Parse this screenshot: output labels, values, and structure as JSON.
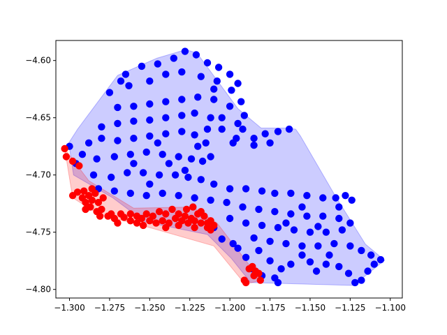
{
  "chart_data": {
    "type": "scatter",
    "title": "",
    "xlabel": "",
    "ylabel": "",
    "xlim": [
      -1.3085,
      -1.0925
    ],
    "ylim": [
      -4.8075,
      -4.5825
    ],
    "x_ticks": [
      -1.3,
      -1.275,
      -1.25,
      -1.225,
      -1.2,
      -1.175,
      -1.15,
      -1.125,
      -1.1
    ],
    "x_tick_labels": [
      "−1.300",
      "−1.275",
      "−1.250",
      "−1.225",
      "−1.200",
      "−1.175",
      "−1.150",
      "−1.125",
      "−1.100"
    ],
    "y_ticks": [
      -4.8,
      -4.75,
      -4.7,
      -4.65,
      -4.6
    ],
    "y_tick_labels": [
      "−4.80",
      "−4.75",
      "−4.70",
      "−4.65",
      "−4.60"
    ],
    "grid": false,
    "legend": false,
    "series": [
      {
        "color": "#0000ff",
        "hull": [
          [
            -1.2275,
            -4.5905
          ],
          [
            -1.2205,
            -4.5935
          ],
          [
            -1.195,
            -4.642
          ],
          [
            -1.1805,
            -4.659
          ],
          [
            -1.164,
            -4.659
          ],
          [
            -1.159,
            -4.66
          ],
          [
            -1.156,
            -4.666
          ],
          [
            -1.134,
            -4.719
          ],
          [
            -1.1155,
            -4.7605
          ],
          [
            -1.1035,
            -4.7745
          ],
          [
            -1.123,
            -4.7965
          ],
          [
            -1.187,
            -4.794
          ],
          [
            -1.199,
            -4.773
          ],
          [
            -1.214,
            -4.752
          ],
          [
            -1.253,
            -4.741
          ],
          [
            -1.273,
            -4.72
          ],
          [
            -1.2975,
            -4.7
          ],
          [
            -1.3005,
            -4.672
          ],
          [
            -1.295,
            -4.66
          ],
          [
            -1.27,
            -4.613
          ],
          [
            -1.2455,
            -4.598
          ]
        ],
        "points": [
          [
            -1.265,
            -4.612
          ],
          [
            -1.255,
            -4.605
          ],
          [
            -1.245,
            -4.603
          ],
          [
            -1.235,
            -4.598
          ],
          [
            -1.228,
            -4.592
          ],
          [
            -1.221,
            -4.595
          ],
          [
            -1.214,
            -4.602
          ],
          [
            -1.207,
            -4.606
          ],
          [
            -1.2,
            -4.612
          ],
          [
            -1.195,
            -4.62
          ],
          [
            -1.263,
            -4.622
          ],
          [
            -1.25,
            -4.618
          ],
          [
            -1.24,
            -4.612
          ],
          [
            -1.23,
            -4.61
          ],
          [
            -1.218,
            -4.614
          ],
          [
            -1.208,
            -4.618
          ],
          [
            -1.199,
            -4.626
          ],
          [
            -1.193,
            -4.636
          ],
          [
            -1.191,
            -4.648
          ],
          [
            -1.192,
            -4.66
          ],
          [
            -1.27,
            -4.641
          ],
          [
            -1.26,
            -4.64
          ],
          [
            -1.25,
            -4.638
          ],
          [
            -1.24,
            -4.636
          ],
          [
            -1.23,
            -4.634
          ],
          [
            -1.22,
            -4.632
          ],
          [
            -1.21,
            -4.634
          ],
          [
            -1.2,
            -4.64
          ],
          [
            -1.195,
            -4.655
          ],
          [
            -1.196,
            -4.668
          ],
          [
            -1.28,
            -4.658
          ],
          [
            -1.27,
            -4.655
          ],
          [
            -1.26,
            -4.653
          ],
          [
            -1.25,
            -4.652
          ],
          [
            -1.24,
            -4.65
          ],
          [
            -1.23,
            -4.648
          ],
          [
            -1.222,
            -4.646
          ],
          [
            -1.212,
            -4.65
          ],
          [
            -1.205,
            -4.66
          ],
          [
            -1.198,
            -4.672
          ],
          [
            -1.288,
            -4.672
          ],
          [
            -1.28,
            -4.668
          ],
          [
            -1.27,
            -4.67
          ],
          [
            -1.26,
            -4.668
          ],
          [
            -1.25,
            -4.666
          ],
          [
            -1.24,
            -4.664
          ],
          [
            -1.23,
            -4.662
          ],
          [
            -1.222,
            -4.665
          ],
          [
            -1.215,
            -4.672
          ],
          [
            -1.185,
            -4.668
          ],
          [
            -1.178,
            -4.664
          ],
          [
            -1.17,
            -4.662
          ],
          [
            -1.163,
            -4.66
          ],
          [
            -1.175,
            -4.672
          ],
          [
            -1.185,
            -4.674
          ],
          [
            -1.292,
            -4.682
          ],
          [
            -1.283,
            -4.686
          ],
          [
            -1.272,
            -4.684
          ],
          [
            -1.262,
            -4.682
          ],
          [
            -1.252,
            -4.68
          ],
          [
            -1.242,
            -4.682
          ],
          [
            -1.232,
            -4.684
          ],
          [
            -1.224,
            -4.686
          ],
          [
            -1.217,
            -4.688
          ],
          [
            -1.212,
            -4.684
          ],
          [
            -1.285,
            -4.7
          ],
          [
            -1.274,
            -4.702
          ],
          [
            -1.264,
            -4.698
          ],
          [
            -1.254,
            -4.698
          ],
          [
            -1.244,
            -4.7
          ],
          [
            -1.234,
            -4.7
          ],
          [
            -1.226,
            -4.702
          ],
          [
            -1.218,
            -4.704
          ],
          [
            -1.21,
            -4.708
          ],
          [
            -1.2,
            -4.712
          ],
          [
            -1.19,
            -4.712
          ],
          [
            -1.18,
            -4.714
          ],
          [
            -1.172,
            -4.716
          ],
          [
            -1.162,
            -4.716
          ],
          [
            -1.152,
            -4.718
          ],
          [
            -1.142,
            -4.72
          ],
          [
            -1.134,
            -4.72
          ],
          [
            -1.128,
            -4.718
          ],
          [
            -1.124,
            -4.722
          ],
          [
            -1.132,
            -4.728
          ],
          [
            -1.282,
            -4.712
          ],
          [
            -1.272,
            -4.714
          ],
          [
            -1.262,
            -4.716
          ],
          [
            -1.252,
            -4.718
          ],
          [
            -1.242,
            -4.716
          ],
          [
            -1.232,
            -4.718
          ],
          [
            -1.222,
            -4.72
          ],
          [
            -1.212,
            -4.722
          ],
          [
            -1.202,
            -4.724
          ],
          [
            -1.192,
            -4.728
          ],
          [
            -1.182,
            -4.73
          ],
          [
            -1.172,
            -4.732
          ],
          [
            -1.162,
            -4.734
          ],
          [
            -1.152,
            -4.736
          ],
          [
            -1.142,
            -4.736
          ],
          [
            -1.132,
            -4.738
          ],
          [
            -1.125,
            -4.742
          ],
          [
            -1.13,
            -4.748
          ],
          [
            -1.14,
            -4.75
          ],
          [
            -1.15,
            -4.75
          ],
          [
            -1.16,
            -4.748
          ],
          [
            -1.17,
            -4.746
          ],
          [
            -1.18,
            -4.744
          ],
          [
            -1.19,
            -4.742
          ],
          [
            -1.2,
            -4.738
          ],
          [
            -1.185,
            -4.755
          ],
          [
            -1.175,
            -4.758
          ],
          [
            -1.165,
            -4.76
          ],
          [
            -1.155,
            -4.762
          ],
          [
            -1.145,
            -4.762
          ],
          [
            -1.135,
            -4.76
          ],
          [
            -1.125,
            -4.762
          ],
          [
            -1.118,
            -4.766
          ],
          [
            -1.112,
            -4.77
          ],
          [
            -1.106,
            -4.774
          ],
          [
            -1.195,
            -4.764
          ],
          [
            -1.19,
            -4.772
          ],
          [
            -1.186,
            -4.782
          ],
          [
            -1.18,
            -4.788
          ],
          [
            -1.172,
            -4.79
          ],
          [
            -1.17,
            -4.794
          ],
          [
            -1.162,
            -4.778
          ],
          [
            -1.15,
            -4.776
          ],
          [
            -1.14,
            -4.778
          ],
          [
            -1.132,
            -4.78
          ],
          [
            -1.126,
            -4.786
          ],
          [
            -1.122,
            -4.794
          ],
          [
            -1.118,
            -4.792
          ],
          [
            -1.114,
            -4.784
          ],
          [
            -1.11,
            -4.778
          ],
          [
            -1.205,
            -4.756
          ],
          [
            -1.198,
            -4.76
          ],
          [
            -1.21,
            -4.746
          ],
          [
            -1.238,
            -4.69
          ],
          [
            -1.245,
            -4.672
          ],
          [
            -1.3,
            -4.675
          ],
          [
            -1.296,
            -4.69
          ],
          [
            -1.275,
            -4.628
          ],
          [
            -1.268,
            -4.618
          ],
          [
            -1.21,
            -4.625
          ],
          [
            -1.214,
            -4.66
          ],
          [
            -1.205,
            -4.65
          ],
          [
            -1.22,
            -4.675
          ],
          [
            -1.26,
            -4.69
          ],
          [
            -1.25,
            -4.708
          ],
          [
            -1.228,
            -4.696
          ],
          [
            -1.165,
            -4.742
          ],
          [
            -1.155,
            -4.728
          ],
          [
            -1.145,
            -4.745
          ],
          [
            -1.138,
            -4.77
          ],
          [
            -1.155,
            -4.77
          ],
          [
            -1.175,
            -4.775
          ],
          [
            -1.182,
            -4.766
          ],
          [
            -1.168,
            -4.782
          ],
          [
            -1.146,
            -4.784
          ]
        ]
      },
      {
        "color": "#ff0000",
        "hull": [
          [
            -1.303,
            -4.677
          ],
          [
            -1.288,
            -4.705
          ],
          [
            -1.26,
            -4.729
          ],
          [
            -1.223,
            -4.728
          ],
          [
            -1.208,
            -4.742
          ],
          [
            -1.1855,
            -4.783
          ],
          [
            -1.1805,
            -4.792
          ],
          [
            -1.1905,
            -4.7955
          ],
          [
            -1.21,
            -4.762
          ],
          [
            -1.26,
            -4.742
          ],
          [
            -1.281,
            -4.735
          ],
          [
            -1.298,
            -4.72
          ]
        ],
        "points": [
          [
            -1.303,
            -4.677
          ],
          [
            -1.302,
            -4.684
          ],
          [
            -1.298,
            -4.688
          ],
          [
            -1.294,
            -4.692
          ],
          [
            -1.298,
            -4.718
          ],
          [
            -1.295,
            -4.715
          ],
          [
            -1.292,
            -4.72
          ],
          [
            -1.29,
            -4.724
          ],
          [
            -1.288,
            -4.718
          ],
          [
            -1.286,
            -4.722
          ],
          [
            -1.284,
            -4.716
          ],
          [
            -1.282,
            -4.724
          ],
          [
            -1.28,
            -4.73
          ],
          [
            -1.279,
            -4.72
          ],
          [
            -1.287,
            -4.728
          ],
          [
            -1.29,
            -4.73
          ],
          [
            -1.283,
            -4.732
          ],
          [
            -1.281,
            -4.736
          ],
          [
            -1.286,
            -4.712
          ],
          [
            -1.291,
            -4.714
          ],
          [
            -1.276,
            -4.736
          ],
          [
            -1.266,
            -4.737
          ],
          [
            -1.262,
            -4.74
          ],
          [
            -1.258,
            -4.742
          ],
          [
            -1.255,
            -4.738
          ],
          [
            -1.252,
            -4.734
          ],
          [
            -1.248,
            -4.736
          ],
          [
            -1.244,
            -4.732
          ],
          [
            -1.24,
            -4.734
          ],
          [
            -1.236,
            -4.73
          ],
          [
            -1.232,
            -4.734
          ],
          [
            -1.228,
            -4.736
          ],
          [
            -1.224,
            -4.738
          ],
          [
            -1.22,
            -4.734
          ],
          [
            -1.216,
            -4.736
          ],
          [
            -1.212,
            -4.74
          ],
          [
            -1.21,
            -4.744
          ],
          [
            -1.214,
            -4.746
          ],
          [
            -1.218,
            -4.742
          ],
          [
            -1.222,
            -4.74
          ],
          [
            -1.226,
            -4.742
          ],
          [
            -1.23,
            -4.74
          ],
          [
            -1.234,
            -4.738
          ],
          [
            -1.238,
            -4.742
          ],
          [
            -1.242,
            -4.74
          ],
          [
            -1.246,
            -4.742
          ],
          [
            -1.25,
            -4.74
          ],
          [
            -1.254,
            -4.744
          ],
          [
            -1.258,
            -4.736
          ],
          [
            -1.262,
            -4.734
          ],
          [
            -1.268,
            -4.734
          ],
          [
            -1.272,
            -4.738
          ],
          [
            -1.274,
            -4.734
          ],
          [
            -1.27,
            -4.742
          ],
          [
            -1.227,
            -4.73
          ],
          [
            -1.223,
            -4.728
          ],
          [
            -1.218,
            -4.732
          ],
          [
            -1.214,
            -4.742
          ],
          [
            -1.212,
            -4.748
          ],
          [
            -1.222,
            -4.746
          ],
          [
            -1.232,
            -4.744
          ],
          [
            -1.24,
            -4.746
          ],
          [
            -1.186,
            -4.78
          ],
          [
            -1.184,
            -4.784
          ],
          [
            -1.182,
            -4.786
          ],
          [
            -1.181,
            -4.792
          ],
          [
            -1.185,
            -4.788
          ],
          [
            -1.188,
            -4.782
          ],
          [
            -1.191,
            -4.792
          ],
          [
            -1.19,
            -4.794
          ]
        ]
      }
    ]
  }
}
